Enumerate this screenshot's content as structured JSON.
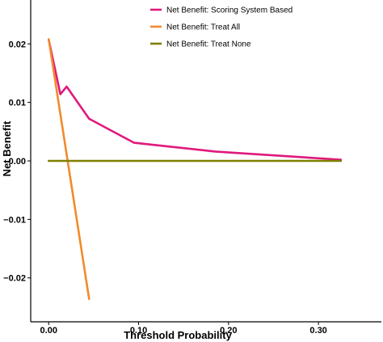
{
  "chart_data": {
    "type": "line",
    "title": "",
    "xlabel": "Threshold Probability",
    "ylabel": "Net Benefit",
    "xlim": [
      -0.02,
      0.37
    ],
    "ylim": [
      -0.0275,
      0.0275
    ],
    "x_ticks": [
      0.0,
      0.1,
      0.2,
      0.3
    ],
    "x_tick_labels": [
      "0.00",
      "0.10",
      "0.20",
      "0.30"
    ],
    "y_ticks": [
      -0.02,
      -0.01,
      0.0,
      0.01,
      0.02
    ],
    "y_tick_labels": [
      "−0.02",
      "−0.01",
      "0.00",
      "0.01",
      "0.02"
    ],
    "grid": false,
    "legend_position": "top-center",
    "series": [
      {
        "name": "Net Benefit: Scoring System Based",
        "color": "#e0197c",
        "x": [
          0.0,
          0.013,
          0.02,
          0.045,
          0.095,
          0.185,
          0.325
        ],
        "y": [
          0.0207,
          0.0114,
          0.0127,
          0.0072,
          0.0031,
          0.0016,
          0.0002
        ]
      },
      {
        "name": "Net Benefit: Treat All",
        "color": "#f4892c",
        "x": [
          0.0,
          0.045
        ],
        "y": [
          0.0208,
          -0.0236
        ]
      },
      {
        "name": "Net Benefit: Treat None",
        "color": "#7f7f00",
        "x": [
          0.0,
          0.325
        ],
        "y": [
          0.0,
          0.0
        ]
      }
    ]
  }
}
